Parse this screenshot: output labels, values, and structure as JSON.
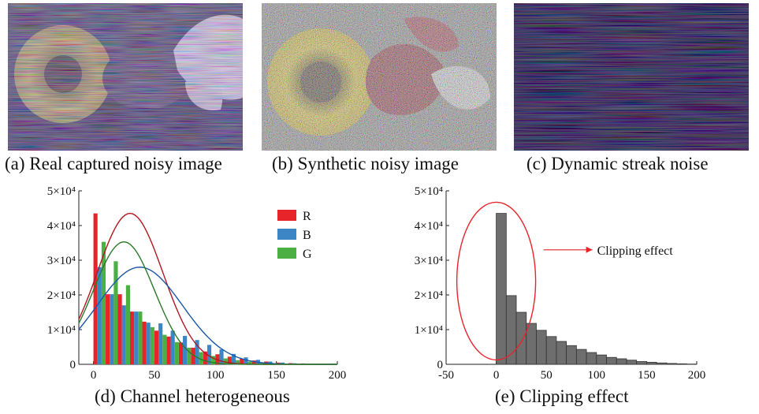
{
  "figure": {
    "captions": {
      "a": "(a) Real captured noisy image",
      "b": "(b) Synthetic noisy image",
      "c": "(c) Dynamic streak noise",
      "d": "(d) Channel heterogeneous",
      "e": "(e) Clipping effect"
    }
  },
  "chart_data": [
    {
      "type": "bar",
      "panel": "d",
      "xlim": [
        -12,
        200
      ],
      "ylim": [
        0,
        50000
      ],
      "x_ticks": [
        0,
        50,
        100,
        150,
        200
      ],
      "y_ticks": [
        {
          "value": 0,
          "label": "0"
        },
        {
          "value": 10000,
          "label": "1×10⁴"
        },
        {
          "value": 20000,
          "label": "2×10⁴"
        },
        {
          "value": 30000,
          "label": "3×10⁴"
        },
        {
          "value": 40000,
          "label": "4×10⁴"
        },
        {
          "value": 50000,
          "label": "5×10⁴"
        }
      ],
      "grid": false,
      "legend_position": "top-right",
      "bin_width": 10,
      "x": [
        0,
        10,
        20,
        30,
        40,
        50,
        60,
        70,
        80,
        90,
        100,
        110,
        120,
        130,
        140,
        150,
        160,
        170,
        180,
        190
      ],
      "series": [
        {
          "name": "R",
          "color": "#e8242b",
          "values": [
            43500,
            20200,
            20200,
            15200,
            12300,
            9700,
            8000,
            6300,
            4800,
            3700,
            2900,
            2200,
            1600,
            1100,
            800,
            500,
            350,
            250,
            150,
            100
          ],
          "fit": {
            "mu": 30,
            "sigma": 27,
            "peak": 43500,
            "color": "#b01822"
          }
        },
        {
          "name": "B",
          "color": "#3d86c6",
          "values": [
            28000,
            20200,
            17000,
            15200,
            12000,
            11800,
            9700,
            8200,
            7000,
            5600,
            4300,
            3000,
            2000,
            1300,
            800,
            500,
            300,
            200,
            100,
            50
          ],
          "fit": {
            "mu": 38,
            "sigma": 35,
            "peak": 28000,
            "color": "#1b57a6"
          }
        },
        {
          "name": "G",
          "color": "#4caf44",
          "values": [
            35300,
            29700,
            22800,
            15200,
            10700,
            8500,
            6400,
            4800,
            3500,
            2400,
            1700,
            1200,
            800,
            500,
            300,
            200,
            100,
            60,
            30,
            20
          ],
          "fit": {
            "mu": 25,
            "sigma": 25,
            "peak": 35300,
            "color": "#2a7a2a"
          }
        }
      ]
    },
    {
      "type": "bar",
      "panel": "e",
      "xlim": [
        -50,
        200
      ],
      "ylim": [
        0,
        50000
      ],
      "x_ticks": [
        -50,
        0,
        50,
        100,
        150,
        200
      ],
      "y_ticks": [
        {
          "value": 0,
          "label": "0"
        },
        {
          "value": 10000,
          "label": "1×10⁴"
        },
        {
          "value": 20000,
          "label": "2×10⁴"
        },
        {
          "value": 30000,
          "label": "3×10⁴"
        },
        {
          "value": 40000,
          "label": "4×10⁴"
        },
        {
          "value": 50000,
          "label": "5×10⁴"
        }
      ],
      "grid": false,
      "bin_width": 10,
      "x": [
        0,
        10,
        20,
        30,
        40,
        50,
        60,
        70,
        80,
        90,
        100,
        110,
        120,
        130,
        140,
        150,
        160,
        170,
        180,
        190
      ],
      "series": [
        {
          "name": "",
          "color": "#6e6e6e",
          "values": [
            43500,
            19800,
            15000,
            11800,
            9800,
            8000,
            6600,
            5400,
            4300,
            3400,
            2700,
            2000,
            1600,
            1200,
            800,
            600,
            400,
            250,
            150,
            80
          ]
        }
      ],
      "annotation": {
        "text": "Clipping effect",
        "color": "#e8242b"
      }
    }
  ]
}
